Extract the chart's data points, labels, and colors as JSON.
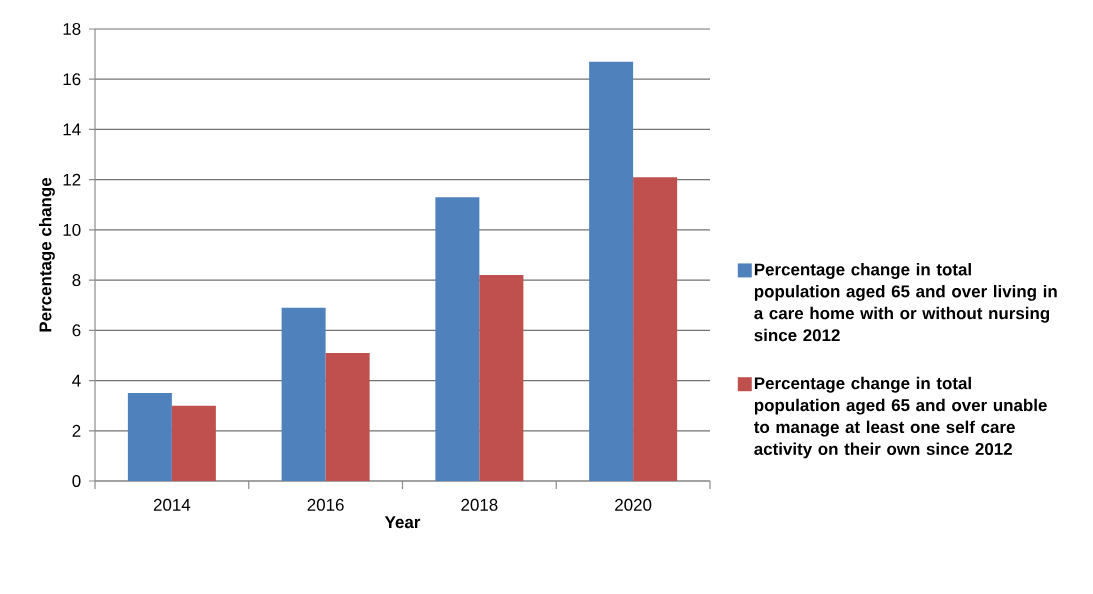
{
  "chart_data": {
    "type": "bar",
    "xlabel": "Year",
    "ylabel": "Percentage change",
    "categories": [
      "2014",
      "2016",
      "2018",
      "2020"
    ],
    "series": [
      {
        "name": "Percentage change in total population aged 65 and over living in a care home with or without nursing since 2012",
        "color": "#4f81bd",
        "values": [
          3.5,
          6.9,
          11.3,
          16.7
        ]
      },
      {
        "name": "Percentage change in total population aged 65 and over unable to manage at least one self care activity on their own since 2012",
        "color": "#c0504d",
        "values": [
          3.0,
          5.1,
          8.2,
          12.1
        ]
      }
    ],
    "ylim": [
      0,
      18
    ],
    "yticks": [
      0,
      2,
      4,
      6,
      8,
      10,
      12,
      14,
      16,
      18
    ],
    "grid": "y",
    "legend": "right"
  }
}
